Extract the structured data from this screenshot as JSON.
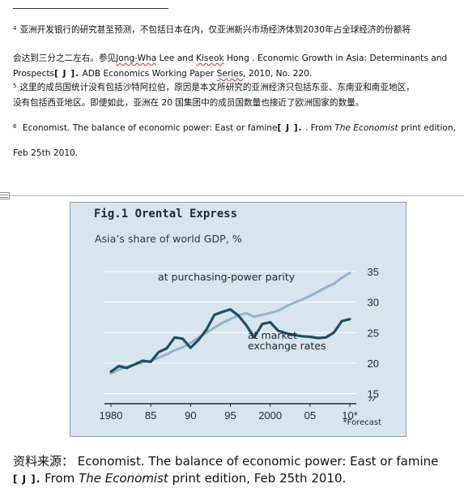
{
  "footnotes": {
    "fn4": {
      "num": "4",
      "line1": "亚洲开发银行的研究甚至预测，不包括日本在内，仅亚洲新兴市场经济体到2030年占全球经济的份额将",
      "line2a": "会达到三分之二左右。参见",
      "author1": "Jong-Wha",
      "mid1": " Lee and ",
      "author2": "Kiseok",
      "mid2": " Hong . Economic Growth in Asia: Determinants and",
      "line3a": "Prospects",
      "bracket": "[ J ].",
      "line3b": " ADB Economics Working Paper ",
      "series": "Series",
      "line3c": ", 2010, No. 220."
    },
    "fn5": {
      "num": "5",
      "line1": "这里的成员国统计没有包括沙特阿拉伯，原因是本文所研究的亚洲经济只包括东亚、东南亚和南亚地区，",
      "line2": "没有包括西亚地区。即便如此，亚洲在 20 国集团中的成员国数量也接近了欧洲国家的数量。"
    },
    "fn6": {
      "num": "6",
      "text": " Economist. The balance of economic power: East or famine",
      "bracket": "[ J ].",
      "mid": " . From ",
      "pub": "The Economist",
      "tail": " print edition,",
      "line2": "Feb 25th 2010."
    }
  },
  "chart": {
    "title": "Fig.1 Orental Express",
    "subtitle": "Asia’s share of world GDP, %",
    "footnote": "*Forecast",
    "line_label_1": "at purchasing-power parity",
    "line_label_2a": "at market",
    "line_label_2b": "exchange rates"
  },
  "chart_data": {
    "type": "line",
    "title": "Fig.1 Orental Express",
    "subtitle": "Asia’s share of world GDP, %",
    "x_ticks": [
      "1980",
      "85",
      "90",
      "95",
      "2000",
      "05",
      "10*"
    ],
    "y_ticks": [
      "15",
      "20",
      "25",
      "30",
      "35"
    ],
    "ylim": [
      14,
      37
    ],
    "xlim": [
      1980,
      2010
    ],
    "x": [
      1980,
      1981,
      1982,
      1983,
      1984,
      1985,
      1986,
      1987,
      1988,
      1989,
      1990,
      1991,
      1992,
      1993,
      1994,
      1995,
      1996,
      1997,
      1998,
      1999,
      2000,
      2001,
      2002,
      2003,
      2004,
      2005,
      2006,
      2007,
      2008,
      2009,
      2010
    ],
    "series": [
      {
        "name": "at purchasing-power parity",
        "color": "#8fb7ca",
        "values": [
          18.3,
          18.9,
          19.4,
          19.8,
          20.1,
          20.4,
          20.9,
          21.4,
          22.1,
          22.6,
          23.3,
          24.2,
          25.0,
          25.8,
          26.6,
          27.2,
          27.8,
          28.2,
          27.6,
          27.9,
          28.2,
          28.6,
          29.3,
          29.9,
          30.4,
          31.0,
          31.7,
          32.4,
          33.0,
          34.0,
          34.8
        ]
      },
      {
        "name": "at market exchange rates",
        "color": "#1e4f66",
        "values": [
          18.6,
          19.5,
          19.2,
          19.8,
          20.4,
          20.2,
          21.8,
          22.4,
          24.2,
          24.0,
          22.5,
          23.8,
          25.5,
          27.9,
          28.4,
          28.8,
          27.8,
          26.2,
          24.2,
          26.4,
          26.7,
          25.3,
          24.9,
          24.6,
          24.4,
          24.3,
          24.1,
          24.2,
          25.0,
          26.9,
          27.2
        ]
      }
    ],
    "annotations": [
      "at purchasing-power parity",
      "at market exchange rates",
      "*Forecast"
    ]
  },
  "source": {
    "prefix": "资料来源：",
    "text": " Economist. The balance of economic power: East or famine",
    "bracket": "[ J ].",
    "from": " From ",
    "pub": "The Economist",
    "tail": " print edition, Feb 25th 2010."
  },
  "colors": {
    "chart_bg": "#d9e5ee",
    "ppp": "#8fb7ca",
    "mer": "#1e4f66"
  }
}
